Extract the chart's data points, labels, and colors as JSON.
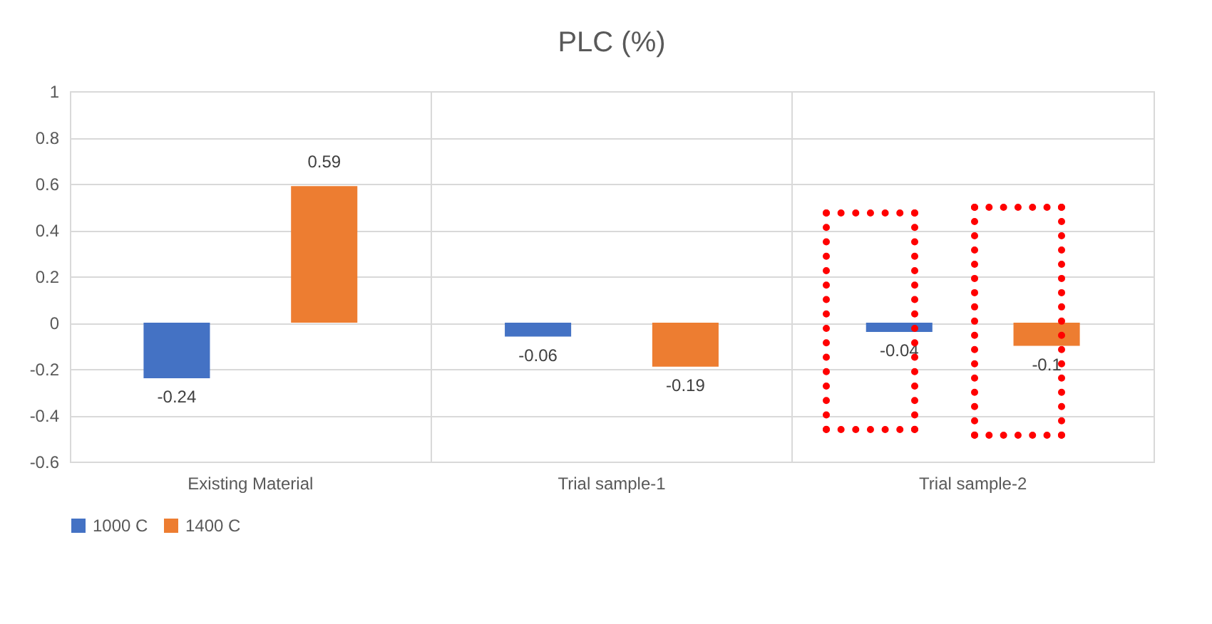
{
  "chart_data": {
    "type": "bar",
    "title": "PLC (%)",
    "categories": [
      "Existing Material",
      "Trial sample-1",
      "Trial sample-2"
    ],
    "series": [
      {
        "name": "1000 C",
        "color": "#4472c4",
        "values": [
          -0.24,
          -0.06,
          -0.04
        ]
      },
      {
        "name": "1400 C",
        "color": "#ed7d31",
        "values": [
          0.59,
          -0.19,
          -0.1
        ]
      }
    ],
    "ylim": [
      -0.6,
      1
    ],
    "yticks": [
      -0.6,
      -0.4,
      -0.2,
      0,
      0.2,
      0.4,
      0.6,
      0.8,
      1
    ],
    "grid": true,
    "legend": "bottom",
    "data_labels": true
  }
}
